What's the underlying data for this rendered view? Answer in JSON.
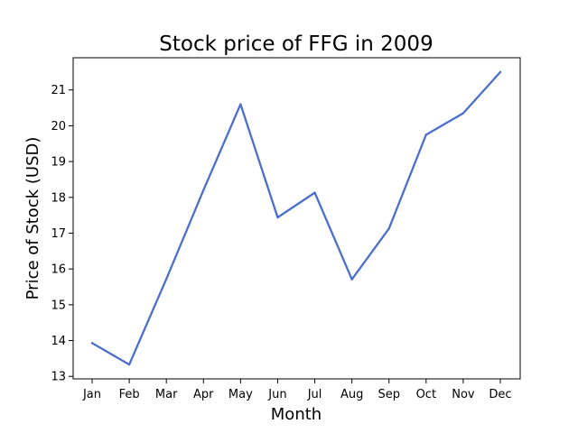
{
  "chart_data": {
    "type": "line",
    "title": "Stock price of FFG in 2009",
    "xlabel": "Month",
    "ylabel": "Price of Stock (USD)",
    "categories": [
      "Jan",
      "Feb",
      "Mar",
      "Apr",
      "May",
      "Jun",
      "Jul",
      "Aug",
      "Sep",
      "Oct",
      "Nov",
      "Dec"
    ],
    "series": [
      {
        "values": [
          13.93,
          13.33,
          15.72,
          18.2,
          20.6,
          17.44,
          18.13,
          15.71,
          17.13,
          19.75,
          20.35,
          21.5
        ]
      }
    ],
    "yticks": [
      13,
      14,
      15,
      16,
      17,
      18,
      19,
      20,
      21
    ],
    "ylim": [
      12.93,
      21.9
    ],
    "grid": false,
    "line_color": "#4c6fcc"
  }
}
